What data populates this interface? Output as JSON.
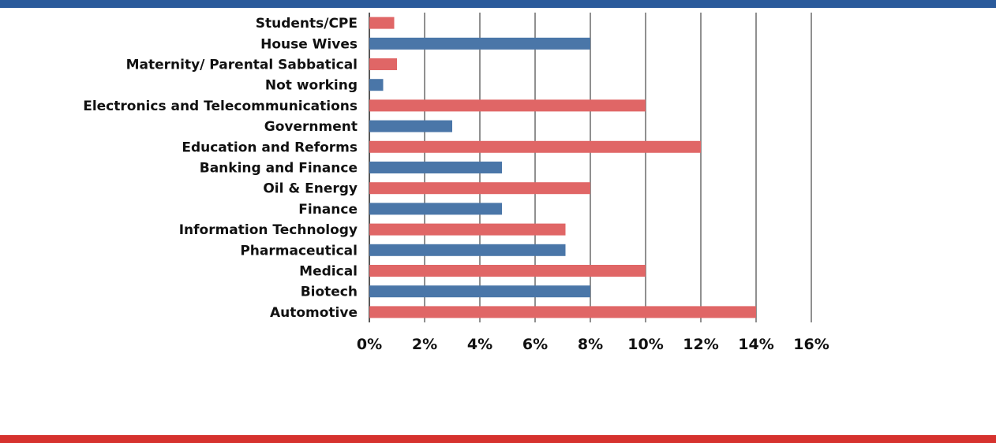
{
  "chart_data": {
    "type": "bar",
    "orientation": "horizontal",
    "categories": [
      "Students/CPE",
      "House Wives",
      "Maternity/ Parental Sabbatical",
      "Not working",
      "Electronics and Telecommunications",
      "Government",
      "Education and Reforms",
      "Banking and Finance",
      "Oil & Energy",
      "Finance",
      "Information Technology",
      "Pharmaceutical",
      "Medical",
      "Biotech",
      "Automotive"
    ],
    "values": [
      0.9,
      8,
      1,
      0.5,
      10,
      3,
      12,
      4.8,
      8,
      4.8,
      7.1,
      7.1,
      10,
      8,
      14
    ],
    "xlim": [
      0,
      16
    ],
    "ticks": [
      "0%",
      "2%",
      "4%",
      "6%",
      "8%",
      "10%",
      "12%",
      "14%",
      "16%"
    ],
    "tick_values": [
      0,
      2,
      4,
      6,
      8,
      10,
      12,
      14,
      16
    ],
    "grid": "vertical",
    "legend": "none",
    "title": "",
    "xlabel": "",
    "ylabel": ""
  },
  "colors": {
    "bar_odd": "#e06666",
    "bar_even": "#4a76a8",
    "grid": "#222222",
    "top_band": "#2a5a9b",
    "bottom_band": "#d6322e"
  }
}
